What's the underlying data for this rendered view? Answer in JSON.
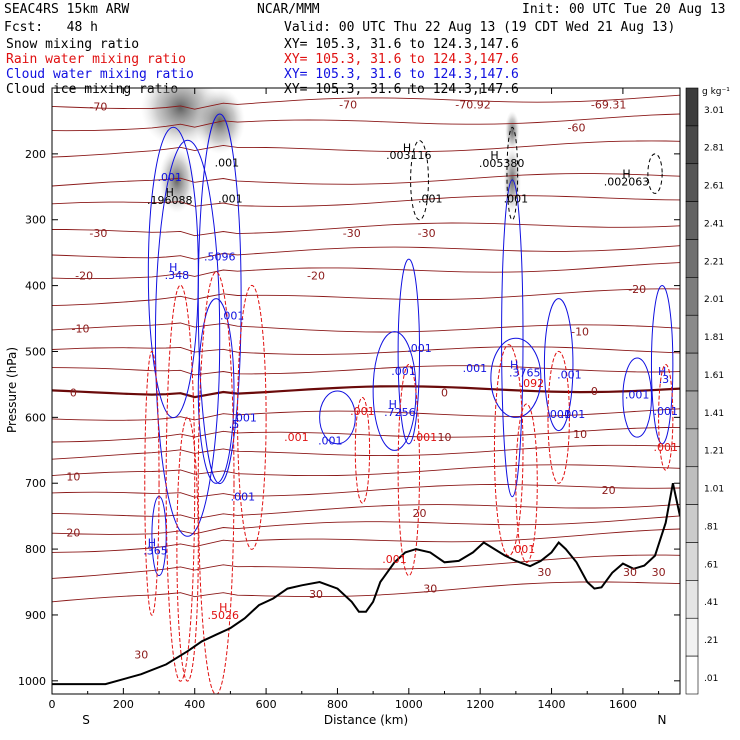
{
  "header": {
    "model": "SEAC4RS 15km ARW",
    "org": "NCAR/MMM",
    "init": "Init: 00 UTC Tue 20 Aug 13",
    "fcst": "Fcst:   48 h",
    "valid": "Valid: 00 UTC Thu 22 Aug 13 (19 CDT Wed 21 Aug 13)",
    "fields": [
      {
        "name": "Snow mixing ratio",
        "xy": "XY= 105.3, 31.6 to 124.3,147.6",
        "color": "#000000"
      },
      {
        "name": "Rain water mixing ratio",
        "xy": "XY= 105.3, 31.6 to 124.3,147.6",
        "color": "#e01010"
      },
      {
        "name": "Cloud water mixing ratio",
        "xy": "XY= 105.3, 31.6 to 124.3,147.6",
        "color": "#1010e0"
      },
      {
        "name": "Cloud ice mixing ratio",
        "xy": "XY= 105.3, 31.6 to 124.3,147.6",
        "color": "#000000"
      }
    ]
  },
  "chart_data": {
    "type": "contour",
    "xlabel": "Distance (km)",
    "ylabel": "Pressure (hPa)",
    "xlim": [
      0,
      1760
    ],
    "ylim": [
      1020,
      100
    ],
    "x_ticks": [
      0,
      200,
      400,
      600,
      800,
      1000,
      1200,
      1400,
      1600
    ],
    "y_ticks": [
      200,
      300,
      400,
      500,
      600,
      700,
      800,
      900,
      1000
    ],
    "left_end_label": "S",
    "right_end_label": "N",
    "colorbar": {
      "unit": "g kg⁻¹",
      "labels": [
        "3.01",
        "2.81",
        "2.61",
        "2.41",
        "2.21",
        "2.01",
        "1.81",
        "1.61",
        "1.41",
        "1.21",
        "1.01",
        ".81",
        ".61",
        ".41",
        ".21",
        ".01"
      ]
    },
    "isotherm_labels": [
      {
        "text": "-70",
        "x": 130,
        "p": 128,
        "color": "#8b1a1a"
      },
      {
        "text": "-70",
        "x": 830,
        "p": 125,
        "color": "#8b1a1a"
      },
      {
        "text": "-70.92",
        "x": 1180,
        "p": 125,
        "color": "#8b1a1a"
      },
      {
        "text": "-69.31",
        "x": 1560,
        "p": 125,
        "color": "#8b1a1a"
      },
      {
        "text": "-60",
        "x": 1470,
        "p": 160,
        "color": "#8b1a1a"
      },
      {
        "text": "-30",
        "x": 130,
        "p": 320,
        "color": "#8b1a1a"
      },
      {
        "text": "-30",
        "x": 840,
        "p": 320,
        "color": "#8b1a1a"
      },
      {
        "text": "-30",
        "x": 1050,
        "p": 320,
        "color": "#8b1a1a"
      },
      {
        "text": "-20",
        "x": 90,
        "p": 385,
        "color": "#8b1a1a"
      },
      {
        "text": "-20",
        "x": 740,
        "p": 385,
        "color": "#8b1a1a"
      },
      {
        "text": "-20",
        "x": 1640,
        "p": 405,
        "color": "#8b1a1a"
      },
      {
        "text": "-10",
        "x": 80,
        "p": 465,
        "color": "#8b1a1a"
      },
      {
        "text": "-10",
        "x": 1480,
        "p": 470,
        "color": "#8b1a1a"
      },
      {
        "text": "0",
        "x": 60,
        "p": 562,
        "color": "#8b1a1a"
      },
      {
        "text": "0",
        "x": 1100,
        "p": 562,
        "color": "#8b1a1a"
      },
      {
        "text": "0",
        "x": 1520,
        "p": 560,
        "color": "#8b1a1a"
      },
      {
        "text": "10",
        "x": 60,
        "p": 690,
        "color": "#8b1a1a"
      },
      {
        "text": "10",
        "x": 1100,
        "p": 630,
        "color": "#8b1a1a"
      },
      {
        "text": "10",
        "x": 1480,
        "p": 625,
        "color": "#8b1a1a"
      },
      {
        "text": "20",
        "x": 60,
        "p": 775,
        "color": "#8b1a1a"
      },
      {
        "text": "20",
        "x": 1030,
        "p": 745,
        "color": "#8b1a1a"
      },
      {
        "text": "20",
        "x": 1560,
        "p": 710,
        "color": "#8b1a1a"
      },
      {
        "text": "30",
        "x": 740,
        "p": 868,
        "color": "#8b1a1a"
      },
      {
        "text": "30",
        "x": 1060,
        "p": 860,
        "color": "#8b1a1a"
      },
      {
        "text": "30",
        "x": 1380,
        "p": 835,
        "color": "#8b1a1a"
      },
      {
        "text": "30",
        "x": 1620,
        "p": 835,
        "color": "#8b1a1a"
      },
      {
        "text": "30",
        "x": 1700,
        "p": 835,
        "color": "#8b1a1a"
      },
      {
        "text": "30",
        "x": 250,
        "p": 960,
        "color": "#8b1a1a"
      }
    ],
    "max_labels": [
      {
        "text": "H",
        "x": 330,
        "p": 258,
        "color": "#000000"
      },
      {
        "text": ".196088",
        "x": 330,
        "p": 270,
        "color": "#000000"
      },
      {
        "text": "H",
        "x": 995,
        "p": 190,
        "color": "#000000"
      },
      {
        "text": ".003116",
        "x": 1000,
        "p": 202,
        "color": "#000000"
      },
      {
        "text": "H",
        "x": 1240,
        "p": 202,
        "color": "#000000"
      },
      {
        "text": ".005380",
        "x": 1260,
        "p": 214,
        "color": "#000000"
      },
      {
        "text": "H",
        "x": 1610,
        "p": 230,
        "color": "#000000"
      },
      {
        "text": ".002063",
        "x": 1610,
        "p": 242,
        "color": "#000000"
      },
      {
        "text": "H",
        "x": 340,
        "p": 372,
        "color": "#1010e0"
      },
      {
        "text": ".348",
        "x": 350,
        "p": 384,
        "color": "#1010e0"
      },
      {
        "text": ".5096",
        "x": 470,
        "p": 356,
        "color": "#1010e0"
      },
      {
        "text": "H",
        "x": 955,
        "p": 580,
        "color": "#1010e0"
      },
      {
        "text": ".7256",
        "x": 975,
        "p": 592,
        "color": "#1010e0"
      },
      {
        "text": "H",
        "x": 1295,
        "p": 520,
        "color": "#1010e0"
      },
      {
        "text": ".3765",
        "x": 1325,
        "p": 532,
        "color": "#1010e0"
      },
      {
        "text": "H",
        "x": 1710,
        "p": 530,
        "color": "#1010e0"
      },
      {
        "text": ".3",
        "x": 1715,
        "p": 542,
        "color": "#1010e0"
      },
      {
        "text": "H",
        "x": 280,
        "p": 790,
        "color": "#1010e0"
      },
      {
        "text": ".365",
        "x": 290,
        "p": 802,
        "color": "#1010e0"
      },
      {
        "text": "H",
        "x": 480,
        "p": 888,
        "color": "#e01010"
      },
      {
        "text": ".5026",
        "x": 480,
        "p": 900,
        "color": "#e01010"
      }
    ],
    "contour_value_labels": [
      {
        "text": ".001",
        "x": 490,
        "p": 213,
        "color": "#000000"
      },
      {
        "text": ".001",
        "x": 330,
        "p": 235,
        "color": "#1010e0"
      },
      {
        "text": ".001",
        "x": 500,
        "p": 268,
        "color": "#000000"
      },
      {
        "text": ".001",
        "x": 1060,
        "p": 268,
        "color": "#000000"
      },
      {
        "text": ".001",
        "x": 1300,
        "p": 268,
        "color": "#000000"
      },
      {
        "text": ".001",
        "x": 505,
        "p": 445,
        "color": "#1010e0"
      },
      {
        "text": ".001",
        "x": 1030,
        "p": 495,
        "color": "#1010e0"
      },
      {
        "text": ".001",
        "x": 985,
        "p": 530,
        "color": "#1010e0"
      },
      {
        "text": ".001",
        "x": 1185,
        "p": 525,
        "color": "#1010e0"
      },
      {
        "text": ".001",
        "x": 1450,
        "p": 535,
        "color": "#1010e0"
      },
      {
        "text": ".001",
        "x": 1640,
        "p": 565,
        "color": "#1010e0"
      },
      {
        "text": ".001",
        "x": 1720,
        "p": 590,
        "color": "#1010e0"
      },
      {
        "text": ".001",
        "x": 1460,
        "p": 595,
        "color": "#1010e0"
      },
      {
        "text": ".001",
        "x": 1420,
        "p": 595,
        "color": "#1010e0"
      },
      {
        "text": ".001",
        "x": 780,
        "p": 635,
        "color": "#1010e0"
      },
      {
        "text": ".001",
        "x": 870,
        "p": 590,
        "color": "#e01010"
      },
      {
        "text": ".001",
        "x": 1045,
        "p": 630,
        "color": "#e01010"
      },
      {
        "text": ".001",
        "x": 685,
        "p": 630,
        "color": "#e01010"
      },
      {
        "text": ".001",
        "x": 1720,
        "p": 645,
        "color": "#e01010"
      },
      {
        "text": ".001",
        "x": 960,
        "p": 815,
        "color": "#e01010"
      },
      {
        "text": ".001",
        "x": 1320,
        "p": 800,
        "color": "#e01010"
      },
      {
        "text": ".001",
        "x": 535,
        "p": 720,
        "color": "#1010e0"
      },
      {
        "text": ".001",
        "x": 540,
        "p": 600,
        "color": "#1010e0"
      },
      {
        "text": ".5",
        "x": 510,
        "p": 610,
        "color": "#1010e0"
      },
      {
        "text": ".092",
        "x": 1345,
        "p": 548,
        "color": "#e01010"
      }
    ],
    "terrain": [
      [
        0,
        1005
      ],
      [
        150,
        1005
      ],
      [
        250,
        990
      ],
      [
        320,
        975
      ],
      [
        380,
        955
      ],
      [
        420,
        940
      ],
      [
        460,
        930
      ],
      [
        500,
        920
      ],
      [
        540,
        905
      ],
      [
        580,
        885
      ],
      [
        620,
        875
      ],
      [
        660,
        860
      ],
      [
        700,
        855
      ],
      [
        750,
        850
      ],
      [
        800,
        860
      ],
      [
        840,
        880
      ],
      [
        860,
        895
      ],
      [
        880,
        895
      ],
      [
        900,
        880
      ],
      [
        920,
        850
      ],
      [
        960,
        820
      ],
      [
        990,
        805
      ],
      [
        1020,
        800
      ],
      [
        1060,
        805
      ],
      [
        1100,
        820
      ],
      [
        1140,
        818
      ],
      [
        1180,
        805
      ],
      [
        1210,
        790
      ],
      [
        1240,
        800
      ],
      [
        1270,
        810
      ],
      [
        1300,
        818
      ],
      [
        1340,
        826
      ],
      [
        1370,
        818
      ],
      [
        1400,
        805
      ],
      [
        1420,
        790
      ],
      [
        1440,
        800
      ],
      [
        1470,
        820
      ],
      [
        1500,
        850
      ],
      [
        1520,
        860
      ],
      [
        1540,
        858
      ],
      [
        1570,
        836
      ],
      [
        1600,
        822
      ],
      [
        1630,
        830
      ],
      [
        1660,
        825
      ],
      [
        1690,
        810
      ],
      [
        1720,
        760
      ],
      [
        1740,
        700
      ],
      [
        1760,
        750
      ]
    ],
    "isotherm_p_at_left": [
      128,
      160,
      200,
      248,
      280,
      320,
      355,
      385,
      425,
      465,
      500,
      530,
      562,
      600,
      632,
      660,
      690,
      720,
      750,
      775,
      800,
      840,
      880
    ]
  }
}
